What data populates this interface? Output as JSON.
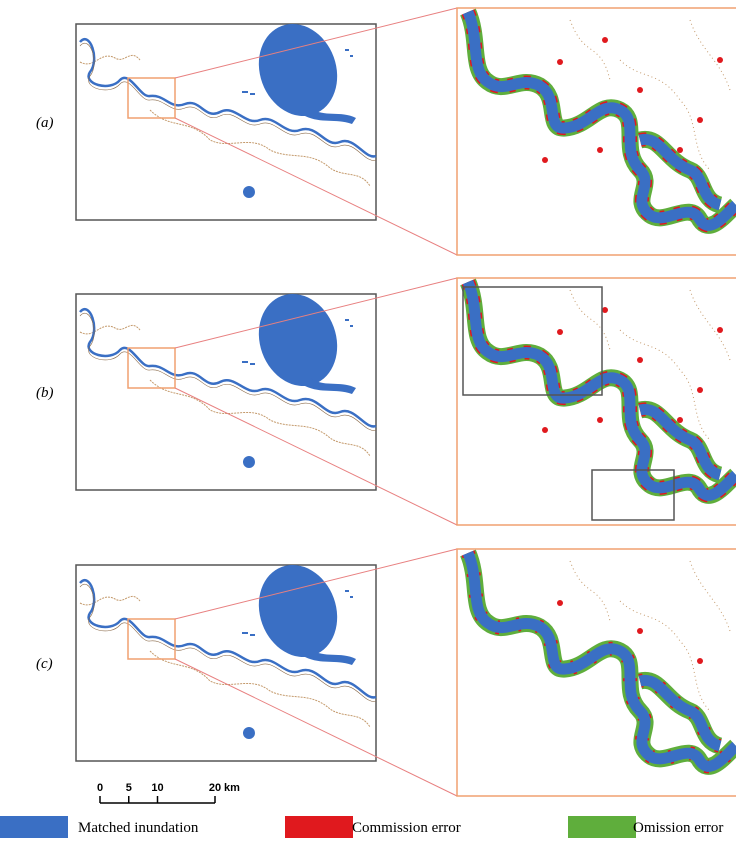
{
  "panels": [
    {
      "label": "(a)"
    },
    {
      "label": "(b)"
    },
    {
      "label": "(c)"
    }
  ],
  "scale_bar": {
    "ticks": [
      0,
      5,
      10,
      20
    ],
    "unit": "km"
  },
  "legend": [
    {
      "label": "Matched inundation",
      "color": "#3a6fc4"
    },
    {
      "label": "Commission error",
      "color": "#e0191e"
    },
    {
      "label": "Omission error",
      "color": "#5fae3c"
    }
  ]
}
